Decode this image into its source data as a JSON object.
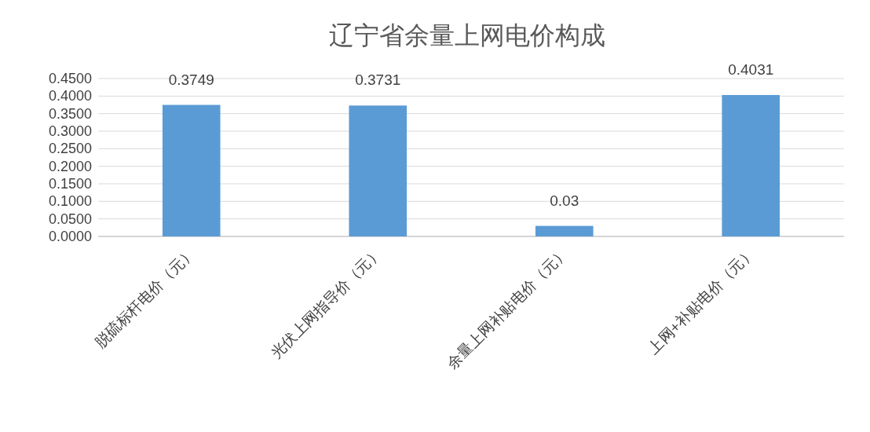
{
  "chart_data": {
    "type": "bar",
    "title": "辽宁省余量上网电价构成",
    "categories": [
      "脱硫标杆电价（元）",
      "光伏上网指导价（元）",
      "余量上网补贴电价（元）",
      "上网+补贴电价（元）"
    ],
    "values": [
      0.3749,
      0.3731,
      0.03,
      0.4031
    ],
    "color": "#5b9bd5",
    "ylim": [
      0,
      0.45
    ],
    "yticks": [
      {
        "value": 0,
        "label": "0.0000"
      },
      {
        "value": 0.05,
        "label": "0.0500"
      },
      {
        "value": 0.1,
        "label": "0.1000"
      },
      {
        "value": 0.15,
        "label": "0.1500"
      },
      {
        "value": 0.2,
        "label": "0.2000"
      },
      {
        "value": 0.25,
        "label": "0.2500"
      },
      {
        "value": 0.3,
        "label": "0.3000"
      },
      {
        "value": 0.35,
        "label": "0.3500"
      },
      {
        "value": 0.4,
        "label": "0.4000"
      },
      {
        "value": 0.45,
        "label": "0.4500"
      }
    ],
    "grid": "y",
    "data_labels": true
  }
}
